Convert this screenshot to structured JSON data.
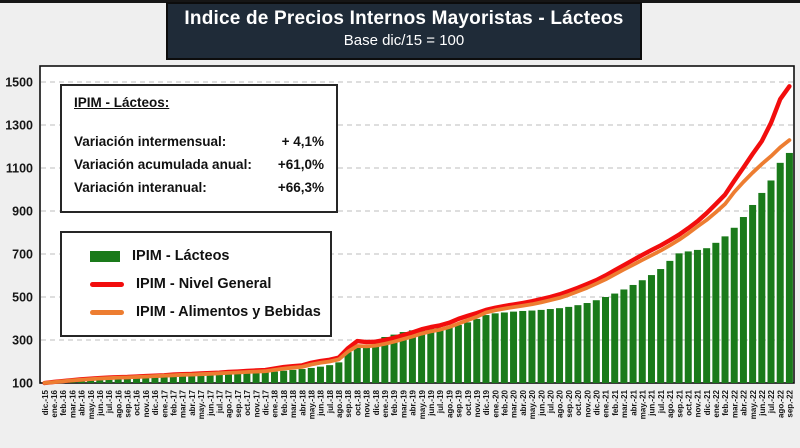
{
  "title": {
    "line1": "Indice de Precios Internos Mayoristas - Lácteos",
    "line2": "Base dic/15 = 100"
  },
  "info_box": {
    "heading": "IPIM - Lácteos:",
    "rows": [
      {
        "label": "Variación intermensual:",
        "value": "+ 4,1%"
      },
      {
        "label": "Variación acumulada anual:",
        "value": "+61,0%"
      },
      {
        "label": "Variación interanual:",
        "value": "+66,3%"
      }
    ]
  },
  "legend": {
    "items": [
      {
        "label": "IPIM - Lácteos",
        "type": "bar"
      },
      {
        "label": "IPIM - Nivel General",
        "type": "line"
      },
      {
        "label": "IPIM - Alimentos y Bebidas",
        "type": "line"
      }
    ]
  },
  "colors": {
    "bar_green": "#1a7a1a",
    "line_red": "#f20d0d",
    "line_orange": "#ed7d31",
    "title_bg": "#1f2b38",
    "plot_bg": "#ffffff",
    "page_bg": "#efefef",
    "gridline": "#c9c9c9",
    "axis_text": "#161616"
  },
  "chart_data": {
    "type": "bar",
    "title": "Indice de Precios Internos Mayoristas - Lácteos",
    "subtitle": "Base dic/15 = 100",
    "xlabel": "",
    "ylabel": "",
    "ylim": [
      100,
      1560
    ],
    "yticks": [
      100,
      300,
      500,
      700,
      900,
      1100,
      1300,
      1500
    ],
    "grid": "horizontal-dashed",
    "legend_position": "inside-top-left",
    "x": [
      "dic.-15",
      "ene.-16",
      "feb.-16",
      "mar.-16",
      "abr.-16",
      "may.-16",
      "jun.-16",
      "jul.-16",
      "ago.-16",
      "sep.-16",
      "oct.-16",
      "nov.-16",
      "dic.-16",
      "ene.-17",
      "feb.-17",
      "mar.-17",
      "abr.-17",
      "may.-17",
      "jun.-17",
      "jul.-17",
      "ago.-17",
      "sep.-17",
      "oct.-17",
      "nov.-17",
      "dic.-17",
      "ene.-18",
      "feb.-18",
      "mar.-18",
      "abr.-18",
      "may.-18",
      "jun.-18",
      "jul.-18",
      "ago.-18",
      "sep.-18",
      "oct.-18",
      "nov.-18",
      "dic.-18",
      "ene.-19",
      "feb.-19",
      "mar.-19",
      "abr.-19",
      "may.-19",
      "jun.-19",
      "jul.-19",
      "ago.-19",
      "sep.-19",
      "oct.-19",
      "nov.-19",
      "dic.-19",
      "ene.-20",
      "feb.-20",
      "mar.-20",
      "abr.-20",
      "may.-20",
      "jun.-20",
      "jul.-20",
      "ago.-20",
      "sep.-20",
      "oct.-20",
      "nov.-20",
      "dic.-20",
      "ene.-21",
      "feb.-21",
      "mar.-21",
      "abr.-21",
      "may.-21",
      "jun.-21",
      "jul.-21",
      "ago.-21",
      "sep.-21",
      "oct.-21",
      "nov.-21",
      "dic.-21",
      "ene.-22",
      "feb.-22",
      "mar.-22",
      "abr.-22",
      "may.-22",
      "jun.-22",
      "jul.-22",
      "ago.-22",
      "sep.-22"
    ],
    "series": [
      {
        "name": "IPIM - Lácteos",
        "type": "bar",
        "color": "#1a7a1a",
        "values": [
          100,
          102,
          104,
          107,
          109,
          111,
          113,
          115,
          117,
          119,
          121,
          123,
          125,
          127,
          129,
          131,
          132,
          134,
          136,
          138,
          140,
          142,
          145,
          147,
          150,
          153,
          157,
          161,
          165,
          170,
          176,
          183,
          196,
          244,
          263,
          277,
          300,
          314,
          325,
          337,
          345,
          350,
          353,
          357,
          362,
          370,
          382,
          398,
          416,
          424,
          428,
          432,
          435,
          437,
          440,
          444,
          448,
          454,
          462,
          472,
          485,
          500,
          516,
          535,
          556,
          578,
          602,
          630,
          668,
          703,
          712,
          719,
          727,
          752,
          782,
          822,
          872,
          928,
          984,
          1042,
          1124,
          1170
        ]
      },
      {
        "name": "IPIM - Nivel General",
        "type": "line",
        "color": "#f20d0d",
        "values": [
          100,
          105,
          109,
          113,
          117,
          120,
          123,
          125,
          127,
          128,
          130,
          132,
          134,
          136,
          139,
          141,
          142,
          144,
          146,
          148,
          151,
          153,
          156,
          158,
          160,
          167,
          174,
          178,
          182,
          194,
          202,
          208,
          218,
          262,
          295,
          290,
          292,
          300,
          310,
          322,
          335,
          350,
          360,
          368,
          380,
          398,
          412,
          425,
          440,
          450,
          458,
          465,
          472,
          480,
          490,
          500,
          512,
          527,
          543,
          560,
          578,
          600,
          624,
          648,
          672,
          696,
          718,
          740,
          764,
          790,
          820,
          852,
          890,
          932,
          976,
          1040,
          1102,
          1165,
          1225,
          1310,
          1420,
          1480
        ]
      },
      {
        "name": "IPIM - Alimentos y Bebidas",
        "type": "line",
        "color": "#ed7d31",
        "values": [
          100,
          104,
          108,
          112,
          115,
          118,
          121,
          123,
          125,
          126,
          128,
          130,
          132,
          134,
          136,
          138,
          139,
          141,
          143,
          145,
          147,
          149,
          151,
          153,
          155,
          161,
          167,
          171,
          175,
          186,
          194,
          200,
          210,
          246,
          272,
          270,
          274,
          282,
          292,
          304,
          316,
          330,
          340,
          348,
          360,
          376,
          392,
          408,
          428,
          438,
          446,
          453,
          459,
          466,
          475,
          485,
          496,
          510,
          526,
          543,
          562,
          582,
          605,
          628,
          650,
          672,
          694,
          716,
          740,
          766,
          796,
          828,
          858,
          894,
          932,
          988,
          1035,
          1078,
          1118,
          1155,
          1196,
          1230
        ]
      }
    ]
  }
}
